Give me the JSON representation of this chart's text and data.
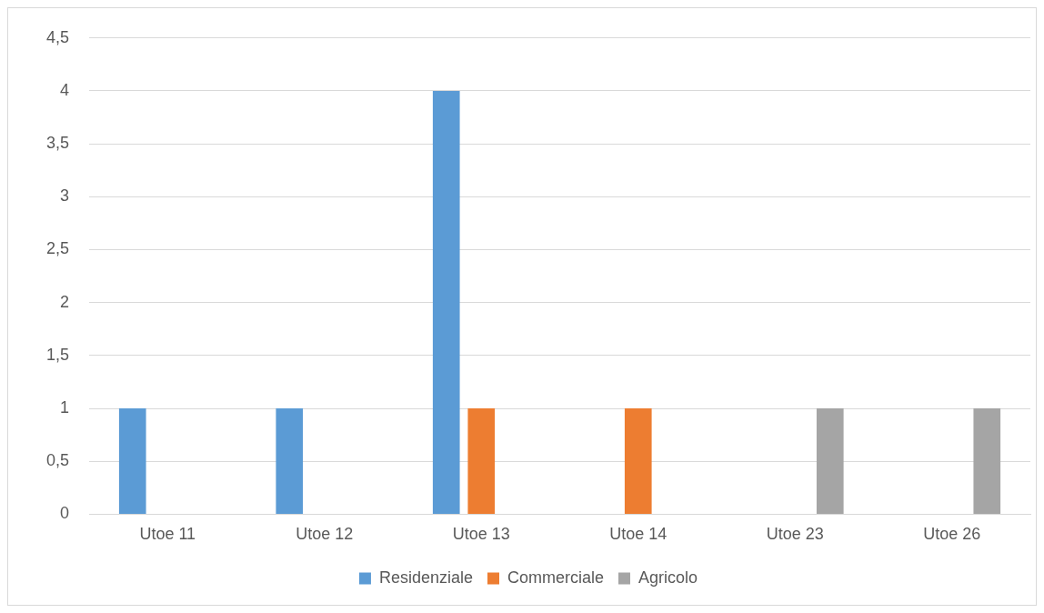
{
  "chart_data": {
    "type": "bar",
    "categories": [
      "Utoe 11",
      "Utoe 12",
      "Utoe 13",
      "Utoe 14",
      "Utoe 23",
      "Utoe 26"
    ],
    "series": [
      {
        "name": "Residenziale",
        "color": "#5b9bd5",
        "values": [
          1,
          1,
          4,
          0,
          0,
          0
        ]
      },
      {
        "name": "Commerciale",
        "color": "#ed7d31",
        "values": [
          0,
          0,
          1,
          1,
          0,
          0
        ]
      },
      {
        "name": "Agricolo",
        "color": "#a5a5a5",
        "values": [
          0,
          0,
          0,
          0,
          1,
          1
        ]
      }
    ],
    "ylim": [
      0,
      4.5
    ],
    "yticks": [
      0,
      {
        "value": 0.5,
        "label": "0,5"
      },
      1,
      {
        "value": 1.5,
        "label": "1,5"
      },
      2,
      {
        "value": 2.5,
        "label": "2,5"
      },
      3,
      {
        "value": 3.5,
        "label": "3,5"
      },
      4,
      {
        "value": 4.5,
        "label": "4,5"
      }
    ],
    "grid": "y",
    "legend": "bottom"
  }
}
